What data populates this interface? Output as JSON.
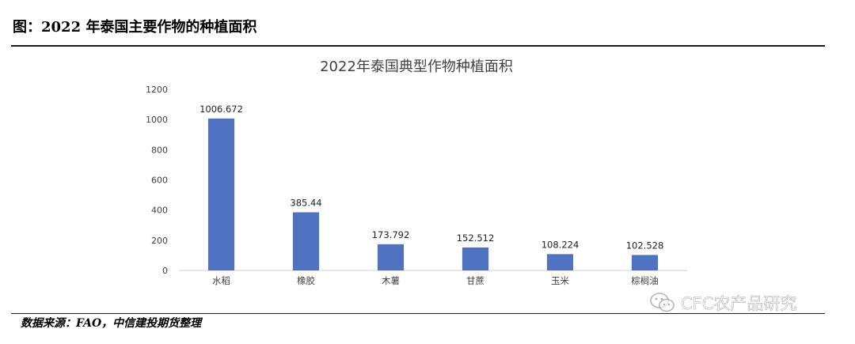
{
  "figure_title": "图：2022 年泰国主要作物的种植面积",
  "source_note": "数据来源：FAO，中信建投期货整理",
  "watermark": {
    "text": "CFC农产品研究",
    "icon": "wechat-icon"
  },
  "chart_data": {
    "type": "bar",
    "title": "2022年泰国典型作物种植面积",
    "categories": [
      "水稻",
      "橡胶",
      "木薯",
      "甘蔗",
      "玉米",
      "棕榈油"
    ],
    "values": [
      1006.672,
      385.44,
      173.792,
      152.512,
      108.224,
      102.528
    ],
    "data_labels": [
      "1006.672",
      "385.44",
      "173.792",
      "152.512",
      "108.224",
      "102.528"
    ],
    "ylim": [
      0,
      1200
    ],
    "yticks": [
      0,
      200,
      400,
      600,
      800,
      1000,
      1200
    ],
    "xlabel": "",
    "ylabel": "",
    "grid": false,
    "bar_color": "#4f72c3"
  }
}
